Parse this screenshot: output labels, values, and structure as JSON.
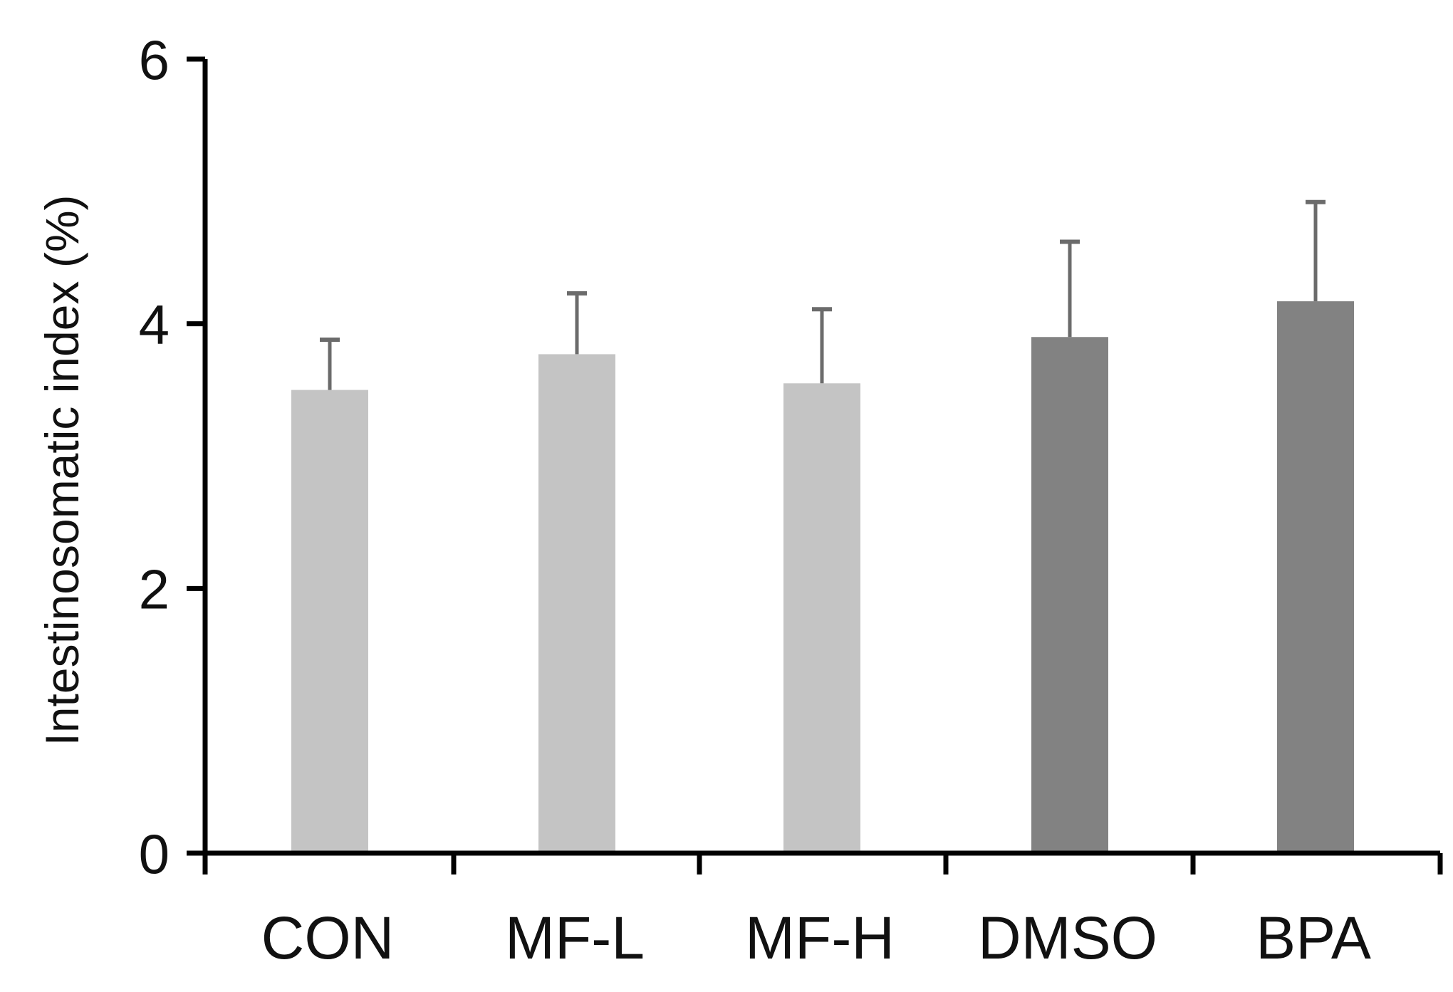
{
  "chart_data": {
    "type": "bar",
    "title": "",
    "xlabel": "",
    "ylabel": "Intestinosomatic index (%)",
    "ylim": [
      0,
      6
    ],
    "yticks": [
      "0",
      "2",
      "4",
      "6"
    ],
    "grid": false,
    "legend": "none",
    "categories": [
      "CON",
      "MF-L",
      "MF-H",
      "DMSO",
      "BPA"
    ],
    "values": [
      3.5,
      3.77,
      3.55,
      3.9,
      4.17
    ],
    "errors": [
      0.38,
      0.46,
      0.56,
      0.72,
      0.75
    ],
    "bar_colors": [
      "#c4c4c4",
      "#c4c4c4",
      "#c4c4c4",
      "#828282",
      "#828282"
    ],
    "error_color": "#6b6b6b",
    "axis_color": "#000000"
  }
}
